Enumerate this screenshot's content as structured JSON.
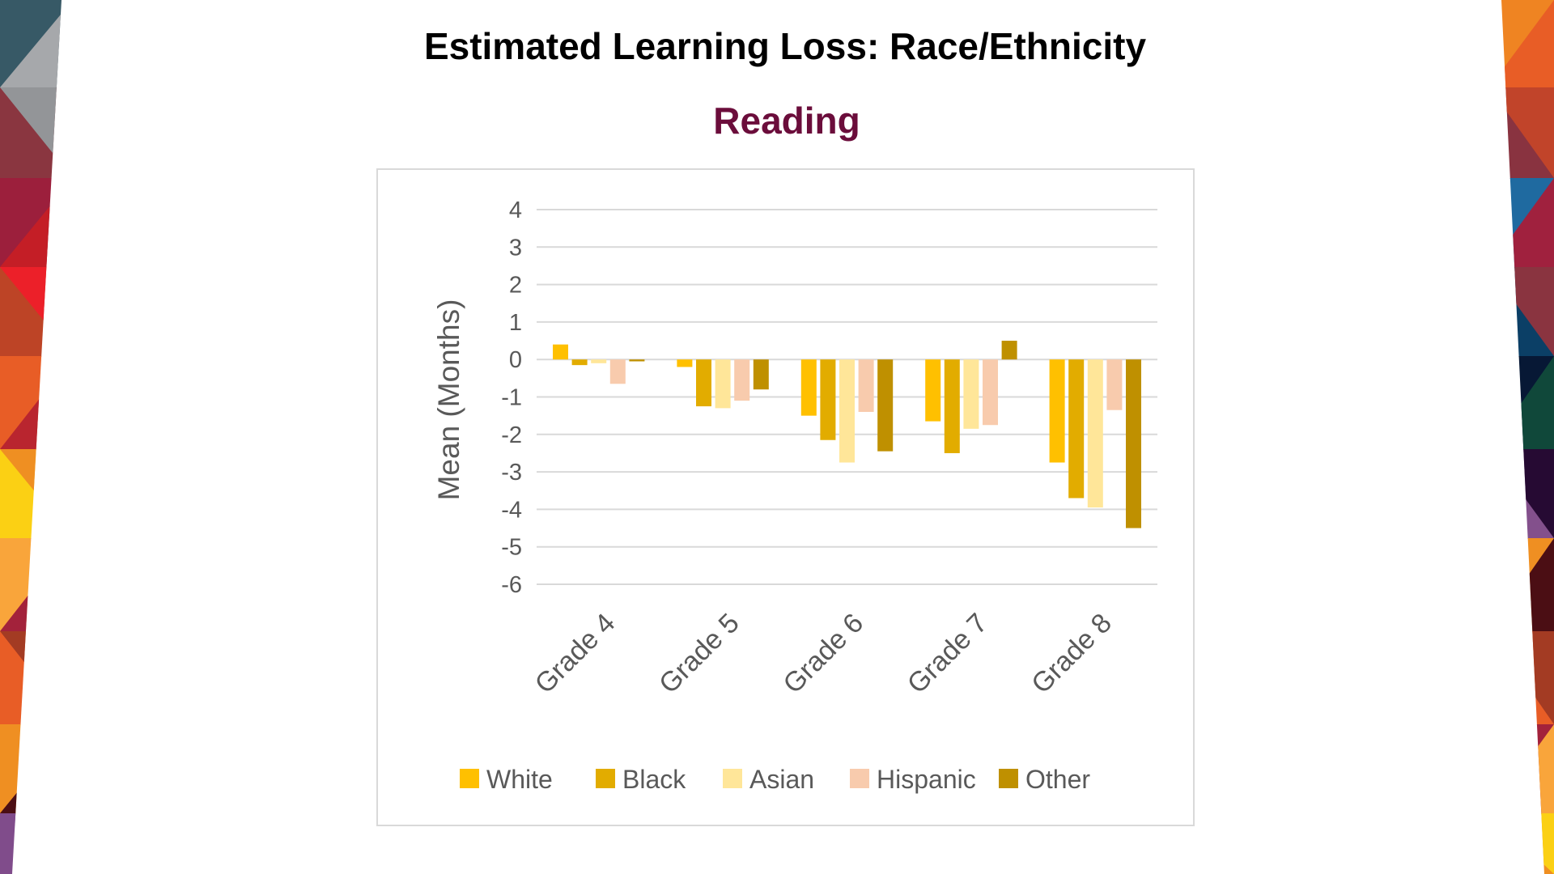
{
  "slide": {
    "title": "Estimated Learning Loss: Race/Ethnicity",
    "subtitle": "Reading"
  },
  "chart_data": {
    "type": "bar",
    "title": "",
    "xlabel": "",
    "ylabel": "Mean (Months)",
    "ylim": [
      -6,
      4
    ],
    "yticks": [
      "4",
      "3",
      "2",
      "1",
      "0",
      "-1",
      "-2",
      "-3",
      "-4",
      "-5",
      "-6"
    ],
    "grid": true,
    "legend_position": "bottom",
    "categories": [
      "Grade 4",
      "Grade 5",
      "Grade 6",
      "Grade 7",
      "Grade 8"
    ],
    "series": [
      {
        "name": "White",
        "color": "#ffc000",
        "values": [
          0.4,
          -0.2,
          -1.5,
          -1.65,
          -2.75
        ]
      },
      {
        "name": "Black",
        "color": "#e2ac00",
        "values": [
          -0.15,
          -1.25,
          -2.15,
          -2.5,
          -3.7
        ]
      },
      {
        "name": "Asian",
        "color": "#ffe699",
        "values": [
          -0.1,
          -1.3,
          -2.75,
          -1.85,
          -3.95
        ]
      },
      {
        "name": "Hispanic",
        "color": "#f8cbad",
        "values": [
          -0.65,
          -1.1,
          -1.4,
          -1.75,
          -1.35
        ]
      },
      {
        "name": "Other",
        "color": "#bf9000",
        "values": [
          -0.05,
          -0.8,
          -2.45,
          0.5,
          -4.5
        ]
      }
    ]
  }
}
